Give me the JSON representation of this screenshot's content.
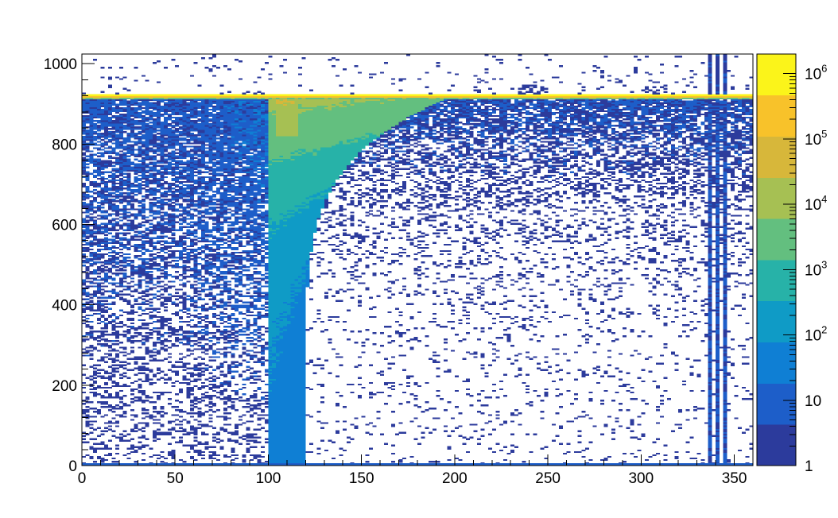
{
  "chart_data": {
    "type": "heatmap",
    "title": "",
    "xlabel": "",
    "ylabel": "",
    "xlim": [
      0,
      360
    ],
    "ylim": [
      0,
      1024
    ],
    "x_ticks": [
      0,
      50,
      100,
      150,
      200,
      250,
      300,
      350
    ],
    "y_ticks": [
      0,
      200,
      400,
      600,
      800,
      1000
    ],
    "z_scale": "log",
    "zlim": [
      1,
      2000000
    ],
    "colorbar": {
      "placement": "right",
      "tick_labels": [
        {
          "value": 1,
          "base": "1",
          "exp": ""
        },
        {
          "value": 10,
          "base": "10",
          "exp": ""
        },
        {
          "value": 100,
          "base": "10",
          "exp": "2"
        },
        {
          "value": 1000,
          "base": "10",
          "exp": "3"
        },
        {
          "value": 10000,
          "base": "10",
          "exp": "4"
        },
        {
          "value": 100000,
          "base": "10",
          "exp": "5"
        },
        {
          "value": 1000000,
          "base": "10",
          "exp": "6"
        }
      ],
      "colors": [
        "#2c3b9c",
        "#1d5ec9",
        "#0f7fd4",
        "#0f9bc6",
        "#27b2a8",
        "#63bf7f",
        "#a6c053",
        "#d7b73a",
        "#f8c22a",
        "#fbf41a"
      ]
    },
    "regions": [
      {
        "name": "band",
        "x_range": [
          0,
          360
        ],
        "y_range": [
          912,
          925
        ],
        "peak_count": 1500000
      },
      {
        "name": "dense-column",
        "x_range": [
          100,
          120
        ],
        "y_range": [
          0,
          912
        ],
        "peak_count": 100000
      },
      {
        "name": "left-diffuse",
        "x_range": [
          0,
          100
        ],
        "y_range": [
          0,
          912
        ],
        "peak_count": 10
      },
      {
        "name": "right-sparse",
        "x_range": [
          120,
          360
        ],
        "y_range": [
          0,
          912
        ],
        "peak_count": 3
      }
    ],
    "grid": false
  }
}
